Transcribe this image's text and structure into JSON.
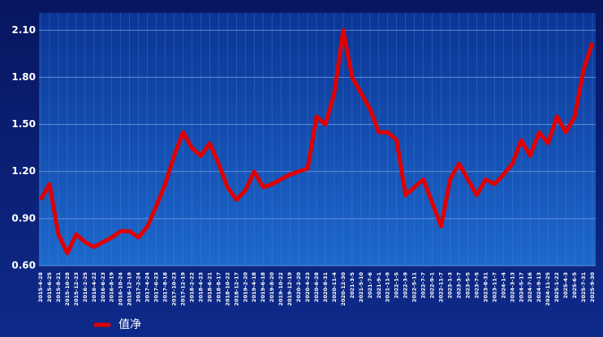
{
  "chart_data": {
    "type": "line",
    "x": [
      "2015-4-28",
      "2015-6-25",
      "2015-8-21",
      "2015-10-28",
      "2015-12-23",
      "2016-2-25",
      "2016-4-22",
      "2016-6-23",
      "2016-8-19",
      "2016-10-24",
      "2016-12-19",
      "2017-2-24",
      "2017-4-24",
      "2017-6-23",
      "2017-8-18",
      "2017-10-23",
      "2017-12-19",
      "2018-2-22",
      "2018-4-23",
      "2018-6-21",
      "2018-8-17",
      "2018-10-22",
      "2018-12-17",
      "2019-2-20",
      "2019-4-18",
      "2019-6-18",
      "2019-8-20",
      "2019-10-22",
      "2019-12-19",
      "2020-2-20",
      "2020-4-23",
      "2020-6-28",
      "2020-8-31",
      "2020-11-4",
      "2020-12-30",
      "2021-3-5",
      "2021-5-10",
      "2021-7-6",
      "2021-9-1",
      "2021-11-9",
      "2022-1-5",
      "2022-3-9",
      "2022-5-11",
      "2022-7-7",
      "2022-9-1",
      "2022-11-7",
      "2023-1-3",
      "2023-3-7",
      "2023-5-5",
      "2023-7-5",
      "2023-8-31",
      "2023-11-7",
      "2024-1-4",
      "2024-3-13",
      "2024-5-17",
      "2024-7-16",
      "2024-9-13",
      "2024-11-25",
      "2025-1-22",
      "2025-4-3",
      "2025-6-5",
      "2025-7-31",
      "2025-9-30"
    ],
    "series": [
      {
        "name": "值净",
        "color": "#e00000",
        "values": [
          1.02,
          1.12,
          0.8,
          0.68,
          0.8,
          0.75,
          0.72,
          0.75,
          0.78,
          0.82,
          0.82,
          0.78,
          0.85,
          0.98,
          1.12,
          1.3,
          1.45,
          1.35,
          1.3,
          1.38,
          1.25,
          1.1,
          1.02,
          1.08,
          1.2,
          1.1,
          1.12,
          1.15,
          1.18,
          1.2,
          1.22,
          1.55,
          1.5,
          1.7,
          2.1,
          1.8,
          1.7,
          1.6,
          1.45,
          1.45,
          1.4,
          1.05,
          1.1,
          1.15,
          1.0,
          0.85,
          1.15,
          1.25,
          1.15,
          1.05,
          1.15,
          1.12,
          1.18,
          1.25,
          1.4,
          1.3,
          1.45,
          1.38,
          1.55,
          1.45,
          1.55,
          1.85,
          2.02
        ]
      }
    ],
    "ylim": [
      0.6,
      2.21
    ],
    "yticks": [
      {
        "value": 0.6,
        "label": "0.60"
      },
      {
        "value": 0.9,
        "label": "0.90"
      },
      {
        "value": 1.2,
        "label": "1.20"
      },
      {
        "value": 1.5,
        "label": "1.50"
      },
      {
        "value": 1.8,
        "label": "1.80"
      },
      {
        "value": 2.1,
        "label": "2.10"
      }
    ],
    "grid": true
  }
}
